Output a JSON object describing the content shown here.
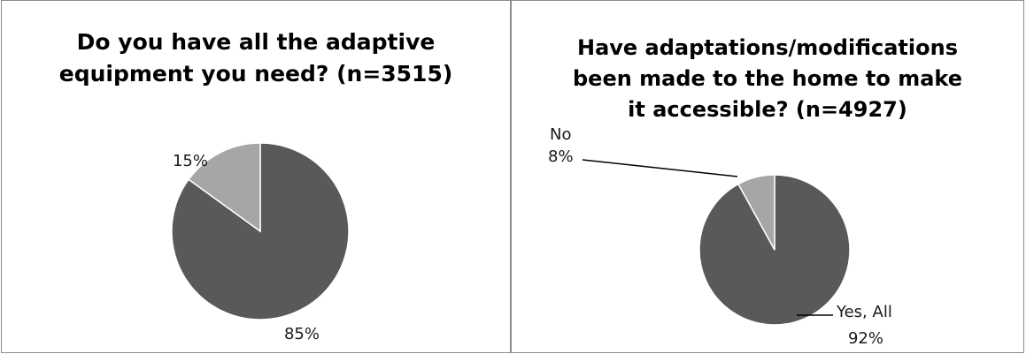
{
  "chart_data": [
    {
      "type": "pie",
      "title_lines": [
        "Do you have all the adaptive",
        "equipment you need? (n=3515)"
      ],
      "slices": [
        {
          "label": "",
          "value": 85,
          "value_label": "85%",
          "color": "#595959"
        },
        {
          "label": "",
          "value": 15,
          "value_label": "15%",
          "color": "#a6a6a6"
        }
      ],
      "legend": "none"
    },
    {
      "type": "pie",
      "title_lines": [
        "Have adaptations/modifications",
        "been made to the home to make",
        "it accessible?  (n=4927)"
      ],
      "slices": [
        {
          "label": "Yes, All",
          "value": 92,
          "value_label": "92%",
          "color": "#595959"
        },
        {
          "label": "No",
          "value": 8,
          "value_label": "8%",
          "color": "#a6a6a6"
        }
      ],
      "legend": "none"
    }
  ]
}
